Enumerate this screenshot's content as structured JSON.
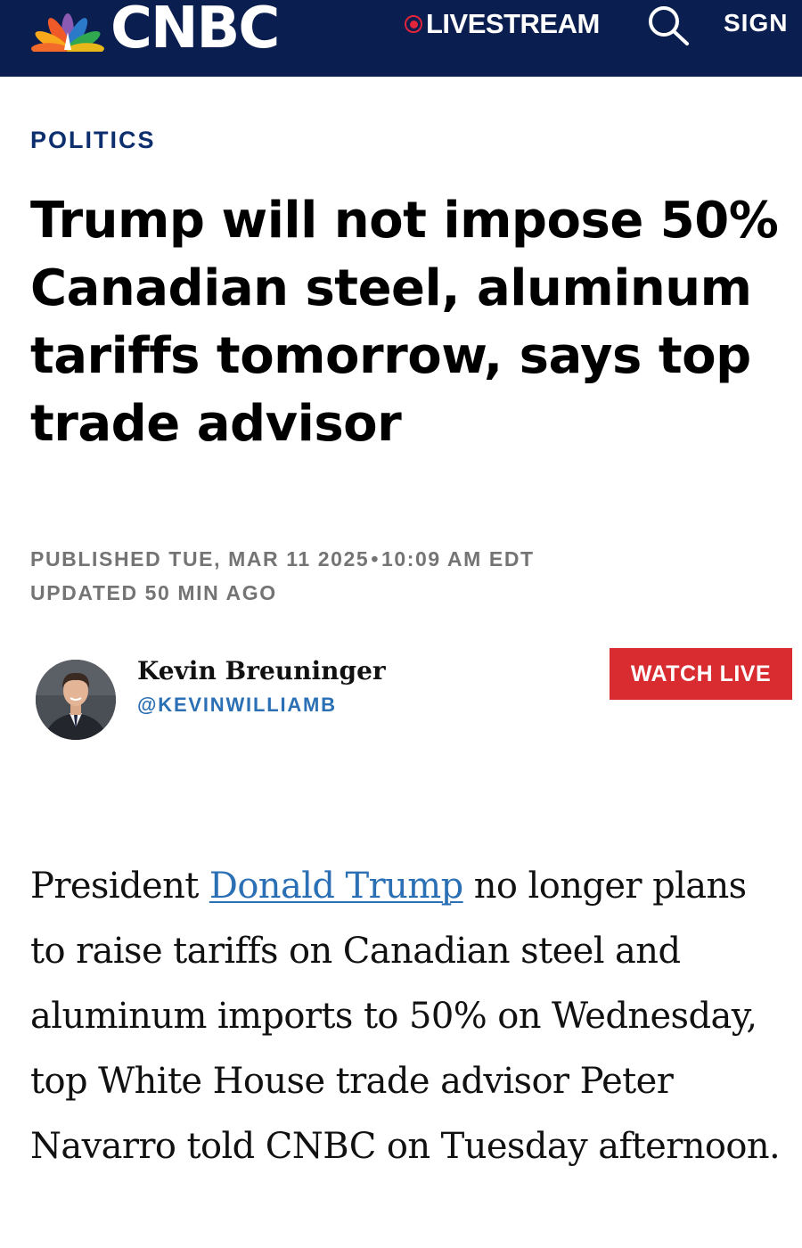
{
  "header": {
    "logo_text": "CNBC",
    "livestream_label": "LIVESTREAM",
    "sign_label": "SIGN",
    "icons": {
      "logo": "nbc-peacock-icon",
      "live": "record-dot-icon",
      "search": "search-icon"
    },
    "colors": {
      "background": "#0a1e4f",
      "live_dot": "#e2253a"
    }
  },
  "article": {
    "section": "POLITICS",
    "headline": "Trump will not impose 50% Canadian steel, aluminum tariffs tomorrow, says top trade advisor",
    "published_label": "PUBLISHED TUE, MAR 11 2025",
    "published_separator": "•",
    "published_time": "10:09 AM EDT",
    "updated": "UPDATED 50 MIN AGO",
    "author": {
      "name": "Kevin Breuninger",
      "handle": "@KEVINWILLIAMB",
      "avatar_icon": "author-avatar"
    },
    "watch_live_label": "WATCH LIVE",
    "body": {
      "prefix": "President ",
      "link_text": "Donald Trump",
      "suffix": " no longer plans to raise tariffs on Canadian steel and aluminum imports to 50% on Wednesday, top White House trade advisor Peter Navarro told CNBC on Tuesday afternoon."
    },
    "colors": {
      "section": "#0e2f6e",
      "link": "#2b6fb5",
      "watch_live": "#d82c30",
      "meta": "#747474"
    }
  }
}
